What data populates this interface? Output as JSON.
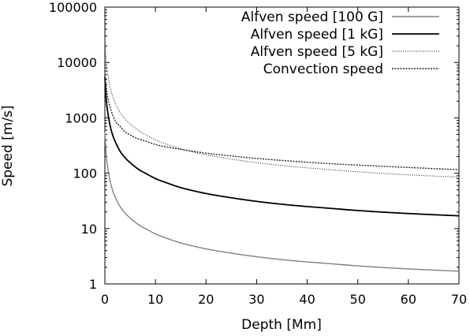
{
  "chart_data": {
    "type": "line",
    "xlabel": "Depth [Mm]",
    "ylabel": "Speed [m/s]",
    "xlim": [
      0,
      70
    ],
    "ylim": [
      1,
      100000
    ],
    "yscale": "log",
    "grid": false,
    "legend_position": "top-right",
    "x_ticks": [
      {
        "value": 0,
        "label": "0"
      },
      {
        "value": 10,
        "label": "10"
      },
      {
        "value": 20,
        "label": "20"
      },
      {
        "value": 30,
        "label": "30"
      },
      {
        "value": 40,
        "label": "40"
      },
      {
        "value": 50,
        "label": "50"
      },
      {
        "value": 60,
        "label": "60"
      },
      {
        "value": 70,
        "label": "70"
      }
    ],
    "y_ticks": [
      {
        "value": 1,
        "label": "1"
      },
      {
        "value": 10,
        "label": "10"
      },
      {
        "value": 100,
        "label": "100"
      },
      {
        "value": 1000,
        "label": "1000"
      },
      {
        "value": 10000,
        "label": "10000"
      },
      {
        "value": 100000,
        "label": "100000"
      }
    ],
    "series": [
      {
        "name": "Alfven speed [100 G]",
        "color": "#808080",
        "dash": "solid",
        "width": 1.4,
        "x": [
          0,
          0.25,
          0.5,
          1,
          1.5,
          2,
          3,
          4,
          5,
          6,
          7,
          8,
          10,
          12,
          15,
          20,
          25,
          30,
          35,
          40,
          45,
          50,
          55,
          60,
          65,
          70
        ],
        "y": [
          550,
          220,
          140,
          75,
          50,
          38,
          25,
          19,
          15.5,
          13,
          11.2,
          10,
          8,
          6.8,
          5.5,
          4.3,
          3.6,
          3.1,
          2.75,
          2.5,
          2.3,
          2.12,
          1.98,
          1.87,
          1.78,
          1.7
        ]
      },
      {
        "name": "Alfven speed [1 kG]",
        "color": "#000000",
        "dash": "solid",
        "width": 1.8,
        "x": [
          0,
          0.25,
          0.5,
          1,
          1.5,
          2,
          3,
          4,
          5,
          6,
          7,
          8,
          10,
          12,
          15,
          20,
          25,
          30,
          35,
          40,
          45,
          50,
          55,
          60,
          65,
          70
        ],
        "y": [
          5500,
          2200,
          1400,
          750,
          500,
          380,
          250,
          190,
          155,
          130,
          112,
          100,
          80,
          68,
          55,
          43,
          36,
          31,
          27.5,
          25,
          23,
          21.2,
          19.8,
          18.7,
          17.8,
          17
        ]
      },
      {
        "name": "Alfven speed [5 kG]",
        "color": "#555555",
        "dash": "1.2,1.6",
        "width": 1.2,
        "x": [
          0,
          0.25,
          0.5,
          1,
          1.5,
          2,
          3,
          4,
          5,
          6,
          7,
          8,
          10,
          12,
          15,
          20,
          25,
          30,
          35,
          40,
          45,
          50,
          55,
          60,
          65,
          70
        ],
        "y": [
          27500,
          11000,
          7000,
          3750,
          2500,
          1900,
          1250,
          950,
          775,
          650,
          560,
          500,
          400,
          340,
          275,
          215,
          180,
          155,
          138,
          125,
          115,
          106,
          99,
          93.5,
          89,
          85
        ]
      },
      {
        "name": "Convection speed",
        "color": "#222222",
        "dash": "2,1.5",
        "width": 1.4,
        "x": [
          0,
          0.5,
          1,
          2,
          3,
          4,
          5,
          6,
          8,
          10,
          12,
          15,
          20,
          25,
          30,
          35,
          40,
          45,
          50,
          55,
          60,
          65,
          70
        ],
        "y": [
          5500,
          2500,
          1600,
          900,
          700,
          560,
          490,
          440,
          380,
          330,
          300,
          270,
          230,
          205,
          185,
          170,
          158,
          148,
          140,
          133,
          127,
          121,
          116
        ]
      }
    ]
  }
}
